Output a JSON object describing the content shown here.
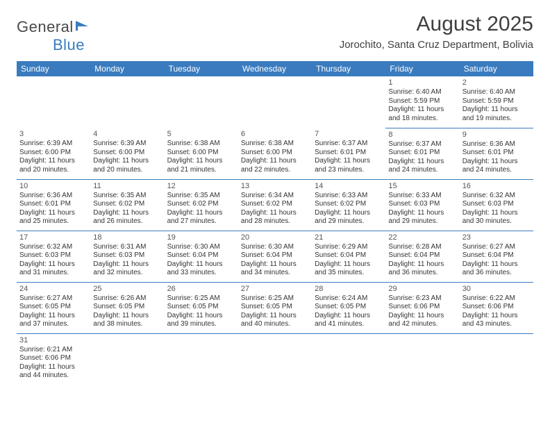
{
  "colors": {
    "header_bg": "#3a7bbf",
    "header_text": "#ffffff",
    "border": "#3a7bbf",
    "page_bg": "#ffffff",
    "body_text": "#333333",
    "title_text": "#3f3f3f",
    "logo_general": "#4a4a4a",
    "logo_blue": "#3a7bbf"
  },
  "typography": {
    "title_fontsize": 30,
    "subtitle_fontsize": 15,
    "dayheader_fontsize": 12,
    "daynum_fontsize": 11,
    "cell_fontsize": 10,
    "font_family": "Arial"
  },
  "logo": {
    "text_general": "General",
    "text_blue": "Blue",
    "icon_fill": "#3a7bbf"
  },
  "title": "August 2025",
  "subtitle": "Jorochito, Santa Cruz Department, Bolivia",
  "day_headers": [
    "Sunday",
    "Monday",
    "Tuesday",
    "Wednesday",
    "Thursday",
    "Friday",
    "Saturday"
  ],
  "weeks": [
    [
      null,
      null,
      null,
      null,
      null,
      {
        "n": "1",
        "lines": [
          "Sunrise: 6:40 AM",
          "Sunset: 5:59 PM",
          "Daylight: 11 hours and 18 minutes."
        ]
      },
      {
        "n": "2",
        "lines": [
          "Sunrise: 6:40 AM",
          "Sunset: 5:59 PM",
          "Daylight: 11 hours and 19 minutes."
        ]
      }
    ],
    [
      {
        "n": "3",
        "lines": [
          "Sunrise: 6:39 AM",
          "Sunset: 6:00 PM",
          "Daylight: 11 hours and 20 minutes."
        ]
      },
      {
        "n": "4",
        "lines": [
          "Sunrise: 6:39 AM",
          "Sunset: 6:00 PM",
          "Daylight: 11 hours and 20 minutes."
        ]
      },
      {
        "n": "5",
        "lines": [
          "Sunrise: 6:38 AM",
          "Sunset: 6:00 PM",
          "Daylight: 11 hours and 21 minutes."
        ]
      },
      {
        "n": "6",
        "lines": [
          "Sunrise: 6:38 AM",
          "Sunset: 6:00 PM",
          "Daylight: 11 hours and 22 minutes."
        ]
      },
      {
        "n": "7",
        "lines": [
          "Sunrise: 6:37 AM",
          "Sunset: 6:01 PM",
          "Daylight: 11 hours and 23 minutes."
        ]
      },
      {
        "n": "8",
        "lines": [
          "Sunrise: 6:37 AM",
          "Sunset: 6:01 PM",
          "Daylight: 11 hours and 24 minutes."
        ]
      },
      {
        "n": "9",
        "lines": [
          "Sunrise: 6:36 AM",
          "Sunset: 6:01 PM",
          "Daylight: 11 hours and 24 minutes."
        ]
      }
    ],
    [
      {
        "n": "10",
        "lines": [
          "Sunrise: 6:36 AM",
          "Sunset: 6:01 PM",
          "Daylight: 11 hours and 25 minutes."
        ]
      },
      {
        "n": "11",
        "lines": [
          "Sunrise: 6:35 AM",
          "Sunset: 6:02 PM",
          "Daylight: 11 hours and 26 minutes."
        ]
      },
      {
        "n": "12",
        "lines": [
          "Sunrise: 6:35 AM",
          "Sunset: 6:02 PM",
          "Daylight: 11 hours and 27 minutes."
        ]
      },
      {
        "n": "13",
        "lines": [
          "Sunrise: 6:34 AM",
          "Sunset: 6:02 PM",
          "Daylight: 11 hours and 28 minutes."
        ]
      },
      {
        "n": "14",
        "lines": [
          "Sunrise: 6:33 AM",
          "Sunset: 6:02 PM",
          "Daylight: 11 hours and 29 minutes."
        ]
      },
      {
        "n": "15",
        "lines": [
          "Sunrise: 6:33 AM",
          "Sunset: 6:03 PM",
          "Daylight: 11 hours and 29 minutes."
        ]
      },
      {
        "n": "16",
        "lines": [
          "Sunrise: 6:32 AM",
          "Sunset: 6:03 PM",
          "Daylight: 11 hours and 30 minutes."
        ]
      }
    ],
    [
      {
        "n": "17",
        "lines": [
          "Sunrise: 6:32 AM",
          "Sunset: 6:03 PM",
          "Daylight: 11 hours and 31 minutes."
        ]
      },
      {
        "n": "18",
        "lines": [
          "Sunrise: 6:31 AM",
          "Sunset: 6:03 PM",
          "Daylight: 11 hours and 32 minutes."
        ]
      },
      {
        "n": "19",
        "lines": [
          "Sunrise: 6:30 AM",
          "Sunset: 6:04 PM",
          "Daylight: 11 hours and 33 minutes."
        ]
      },
      {
        "n": "20",
        "lines": [
          "Sunrise: 6:30 AM",
          "Sunset: 6:04 PM",
          "Daylight: 11 hours and 34 minutes."
        ]
      },
      {
        "n": "21",
        "lines": [
          "Sunrise: 6:29 AM",
          "Sunset: 6:04 PM",
          "Daylight: 11 hours and 35 minutes."
        ]
      },
      {
        "n": "22",
        "lines": [
          "Sunrise: 6:28 AM",
          "Sunset: 6:04 PM",
          "Daylight: 11 hours and 36 minutes."
        ]
      },
      {
        "n": "23",
        "lines": [
          "Sunrise: 6:27 AM",
          "Sunset: 6:04 PM",
          "Daylight: 11 hours and 36 minutes."
        ]
      }
    ],
    [
      {
        "n": "24",
        "lines": [
          "Sunrise: 6:27 AM",
          "Sunset: 6:05 PM",
          "Daylight: 11 hours and 37 minutes."
        ]
      },
      {
        "n": "25",
        "lines": [
          "Sunrise: 6:26 AM",
          "Sunset: 6:05 PM",
          "Daylight: 11 hours and 38 minutes."
        ]
      },
      {
        "n": "26",
        "lines": [
          "Sunrise: 6:25 AM",
          "Sunset: 6:05 PM",
          "Daylight: 11 hours and 39 minutes."
        ]
      },
      {
        "n": "27",
        "lines": [
          "Sunrise: 6:25 AM",
          "Sunset: 6:05 PM",
          "Daylight: 11 hours and 40 minutes."
        ]
      },
      {
        "n": "28",
        "lines": [
          "Sunrise: 6:24 AM",
          "Sunset: 6:05 PM",
          "Daylight: 11 hours and 41 minutes."
        ]
      },
      {
        "n": "29",
        "lines": [
          "Sunrise: 6:23 AM",
          "Sunset: 6:06 PM",
          "Daylight: 11 hours and 42 minutes."
        ]
      },
      {
        "n": "30",
        "lines": [
          "Sunrise: 6:22 AM",
          "Sunset: 6:06 PM",
          "Daylight: 11 hours and 43 minutes."
        ]
      }
    ],
    [
      {
        "n": "31",
        "lines": [
          "Sunrise: 6:21 AM",
          "Sunset: 6:06 PM",
          "Daylight: 11 hours and 44 minutes."
        ]
      },
      null,
      null,
      null,
      null,
      null,
      null
    ]
  ]
}
